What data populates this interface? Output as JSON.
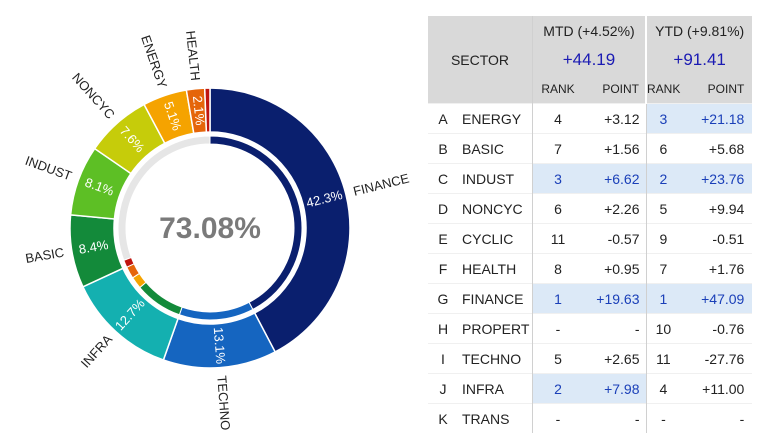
{
  "chart_data": {
    "type": "pie",
    "center_label": "73.08%",
    "slices": [
      {
        "name": "FINANCE",
        "value": 42.3,
        "label": "42.3%",
        "color": "#0a1f6e"
      },
      {
        "name": "TECHNO",
        "value": 13.1,
        "label": "13.1%",
        "color": "#1565c0"
      },
      {
        "name": "INFRA",
        "value": 12.7,
        "label": "12.7%",
        "color": "#14b0b0"
      },
      {
        "name": "BASIC",
        "value": 8.4,
        "label": "8.4%",
        "color": "#138a3a"
      },
      {
        "name": "INDUST",
        "value": 8.1,
        "label": "8.1%",
        "color": "#5dbf25"
      },
      {
        "name": "NONCYC",
        "value": 7.6,
        "label": "7.6%",
        "color": "#c6cc0a"
      },
      {
        "name": "ENERGY",
        "value": 5.1,
        "label": "5.1%",
        "color": "#f5a300"
      },
      {
        "name": "HEALTH",
        "value": 2.1,
        "label": "2.1%",
        "color": "#e5650a"
      },
      {
        "name": "",
        "value": 0.6,
        "label": "",
        "color": "#c0150f"
      }
    ],
    "inner_ring": [
      {
        "value": 42.3,
        "color": "#0a1f6e"
      },
      {
        "value": 13.1,
        "color": "#1565c0"
      },
      {
        "value": 8.4,
        "color": "#138a3a"
      },
      {
        "value": 2.1,
        "color": "#f5a300"
      },
      {
        "value": 2.1,
        "color": "#e5650a"
      },
      {
        "value": 1.3,
        "color": "#c0150f"
      },
      {
        "value": 30.7,
        "color": "#e6e6e6"
      }
    ]
  },
  "table": {
    "sector_header": "SECTOR",
    "mtd": {
      "title": "MTD (+4.52%)",
      "total": "+44.19",
      "rank_label": "RANK",
      "point_label": "POINT"
    },
    "ytd": {
      "title": "YTD (+9.81%)",
      "total": "+91.41",
      "rank_label": "RANK",
      "point_label": "POINT"
    },
    "rows": [
      {
        "letter": "A",
        "sector": "ENERGY",
        "mtd_rank": "4",
        "mtd_point": "+3.12",
        "ytd_rank": "3",
        "ytd_point": "+21.18",
        "mtd_hl": false,
        "ytd_hl": true
      },
      {
        "letter": "B",
        "sector": "BASIC",
        "mtd_rank": "7",
        "mtd_point": "+1.56",
        "ytd_rank": "6",
        "ytd_point": "+5.68",
        "mtd_hl": false,
        "ytd_hl": false
      },
      {
        "letter": "C",
        "sector": "INDUST",
        "mtd_rank": "3",
        "mtd_point": "+6.62",
        "ytd_rank": "2",
        "ytd_point": "+23.76",
        "mtd_hl": true,
        "ytd_hl": true
      },
      {
        "letter": "D",
        "sector": "NONCYC",
        "mtd_rank": "6",
        "mtd_point": "+2.26",
        "ytd_rank": "5",
        "ytd_point": "+9.94",
        "mtd_hl": false,
        "ytd_hl": false
      },
      {
        "letter": "E",
        "sector": "CYCLIC",
        "mtd_rank": "11",
        "mtd_point": "-0.57",
        "ytd_rank": "9",
        "ytd_point": "-0.51",
        "mtd_hl": false,
        "ytd_hl": false
      },
      {
        "letter": "F",
        "sector": "HEALTH",
        "mtd_rank": "8",
        "mtd_point": "+0.95",
        "ytd_rank": "7",
        "ytd_point": "+1.76",
        "mtd_hl": false,
        "ytd_hl": false
      },
      {
        "letter": "G",
        "sector": "FINANCE",
        "mtd_rank": "1",
        "mtd_point": "+19.63",
        "ytd_rank": "1",
        "ytd_point": "+47.09",
        "mtd_hl": true,
        "ytd_hl": true
      },
      {
        "letter": "H",
        "sector": "PROPERT",
        "mtd_rank": "-",
        "mtd_point": "-",
        "ytd_rank": "10",
        "ytd_point": "-0.76",
        "mtd_hl": false,
        "ytd_hl": false
      },
      {
        "letter": "I",
        "sector": "TECHNO",
        "mtd_rank": "5",
        "mtd_point": "+2.65",
        "ytd_rank": "11",
        "ytd_point": "-27.76",
        "mtd_hl": false,
        "ytd_hl": false
      },
      {
        "letter": "J",
        "sector": "INFRA",
        "mtd_rank": "2",
        "mtd_point": "+7.98",
        "ytd_rank": "4",
        "ytd_point": "+11.00",
        "mtd_hl": true,
        "ytd_hl": false
      },
      {
        "letter": "K",
        "sector": "TRANS",
        "mtd_rank": "-",
        "mtd_point": "-",
        "ytd_rank": "-",
        "ytd_point": "-",
        "mtd_hl": false,
        "ytd_hl": false
      }
    ]
  }
}
